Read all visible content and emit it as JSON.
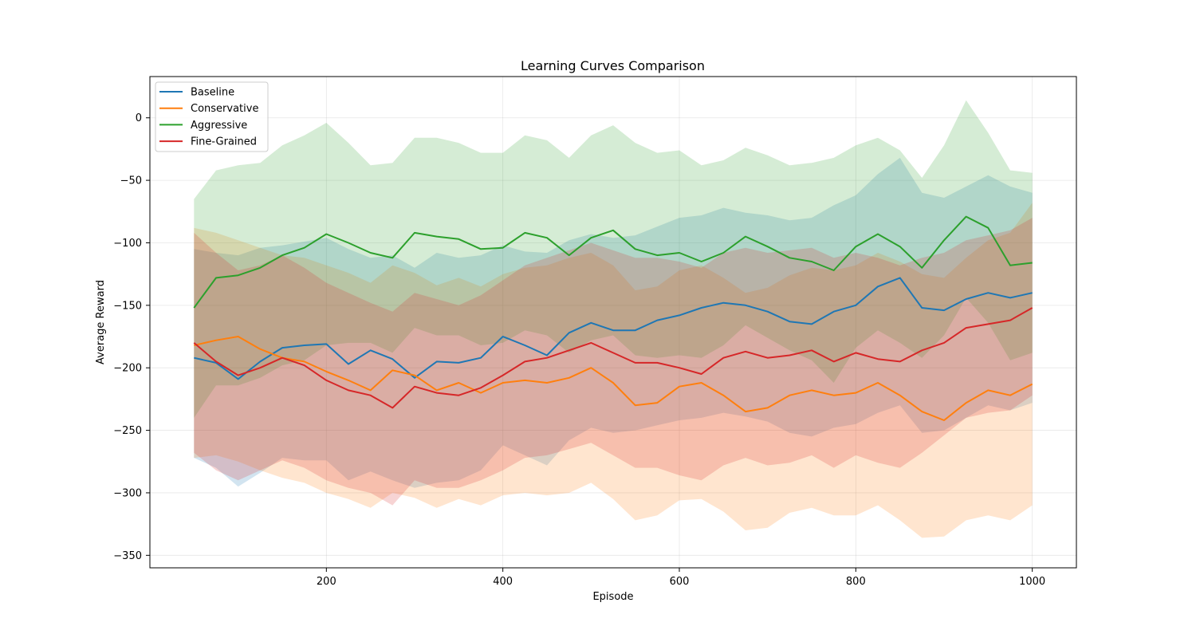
{
  "chart_data": {
    "type": "line",
    "title": "Learning Curves Comparison",
    "xlabel": "Episode",
    "ylabel": "Average Reward",
    "xlim": [
      0,
      1050
    ],
    "ylim": [
      -360,
      33
    ],
    "xticks": [
      200,
      400,
      600,
      800,
      1000
    ],
    "yticks": [
      0,
      -50,
      -100,
      -150,
      -200,
      -250,
      -300,
      -350
    ],
    "grid": true,
    "legend_position": "upper-left",
    "series": [
      {
        "name": "Baseline",
        "color": "#1f77b4",
        "x": [
          50,
          75,
          100,
          125,
          150,
          175,
          200,
          225,
          250,
          275,
          300,
          325,
          350,
          375,
          400,
          425,
          450,
          475,
          500,
          525,
          550,
          575,
          600,
          625,
          650,
          675,
          700,
          725,
          750,
          775,
          800,
          825,
          850,
          875,
          900,
          925,
          950,
          975,
          1000
        ],
        "mean": [
          -192,
          -196,
          -209,
          -195,
          -184,
          -182,
          -181,
          -197,
          -186,
          -193,
          -208,
          -195,
          -196,
          -192,
          -175,
          -182,
          -190,
          -172,
          -164,
          -170,
          -170,
          -162,
          -158,
          -152,
          -148,
          -150,
          -155,
          -163,
          -165,
          -155,
          -150,
          -135,
          -128,
          -152,
          -154,
          -145,
          -140,
          -144,
          -140
        ],
        "upper": [
          -105,
          -108,
          -110,
          -104,
          -102,
          -99,
          -96,
          -105,
          -112,
          -110,
          -120,
          -108,
          -112,
          -110,
          -102,
          -107,
          -108,
          -98,
          -93,
          -96,
          -94,
          -87,
          -80,
          -78,
          -72,
          -76,
          -78,
          -82,
          -80,
          -70,
          -62,
          -45,
          -32,
          -60,
          -64,
          -55,
          -46,
          -55,
          -60
        ],
        "lower": [
          -272,
          -280,
          -295,
          -284,
          -272,
          -274,
          -274,
          -290,
          -283,
          -290,
          -296,
          -292,
          -290,
          -282,
          -262,
          -270,
          -278,
          -258,
          -248,
          -252,
          -250,
          -246,
          -242,
          -240,
          -236,
          -239,
          -243,
          -252,
          -255,
          -248,
          -245,
          -236,
          -230,
          -252,
          -250,
          -240,
          -230,
          -234,
          -228
        ]
      },
      {
        "name": "Conservative",
        "color": "#ff7f0e",
        "x": [
          50,
          75,
          100,
          125,
          150,
          175,
          200,
          225,
          250,
          275,
          300,
          325,
          350,
          375,
          400,
          425,
          450,
          475,
          500,
          525,
          550,
          575,
          600,
          625,
          650,
          675,
          700,
          725,
          750,
          775,
          800,
          825,
          850,
          875,
          900,
          925,
          950,
          975,
          1000
        ],
        "mean": [
          -182,
          -178,
          -175,
          -185,
          -192,
          -195,
          -203,
          -210,
          -218,
          -202,
          -206,
          -218,
          -212,
          -220,
          -212,
          -210,
          -212,
          -208,
          -200,
          -212,
          -230,
          -228,
          -215,
          -212,
          -222,
          -235,
          -232,
          -222,
          -218,
          -222,
          -220,
          -212,
          -222,
          -235,
          -242,
          -228,
          -218,
          -222,
          -213
        ],
        "upper": [
          -88,
          -92,
          -98,
          -104,
          -110,
          -112,
          -118,
          -124,
          -132,
          -118,
          -124,
          -134,
          -128,
          -135,
          -125,
          -120,
          -118,
          -112,
          -108,
          -118,
          -138,
          -135,
          -122,
          -118,
          -128,
          -140,
          -136,
          -126,
          -120,
          -122,
          -118,
          -108,
          -115,
          -125,
          -128,
          -112,
          -98,
          -92,
          -68
        ],
        "lower": [
          -272,
          -270,
          -275,
          -282,
          -288,
          -292,
          -300,
          -305,
          -312,
          -300,
          -304,
          -312,
          -305,
          -310,
          -302,
          -300,
          -302,
          -300,
          -292,
          -305,
          -322,
          -318,
          -306,
          -305,
          -315,
          -330,
          -328,
          -316,
          -312,
          -318,
          -318,
          -310,
          -322,
          -336,
          -335,
          -322,
          -318,
          -322,
          -310
        ]
      },
      {
        "name": "Aggressive",
        "color": "#2ca02c",
        "x": [
          50,
          75,
          100,
          125,
          150,
          175,
          200,
          225,
          250,
          275,
          300,
          325,
          350,
          375,
          400,
          425,
          450,
          475,
          500,
          525,
          550,
          575,
          600,
          625,
          650,
          675,
          700,
          725,
          750,
          775,
          800,
          825,
          850,
          875,
          900,
          925,
          950,
          975,
          1000
        ],
        "mean": [
          -152,
          -128,
          -126,
          -120,
          -110,
          -104,
          -93,
          -100,
          -108,
          -112,
          -92,
          -95,
          -97,
          -105,
          -104,
          -92,
          -96,
          -110,
          -96,
          -90,
          -105,
          -110,
          -108,
          -115,
          -108,
          -95,
          -103,
          -112,
          -115,
          -122,
          -103,
          -93,
          -103,
          -120,
          -98,
          -79,
          -88,
          -118,
          -116
        ],
        "upper": [
          -65,
          -42,
          -38,
          -36,
          -22,
          -14,
          -4,
          -20,
          -38,
          -36,
          -16,
          -16,
          -20,
          -28,
          -28,
          -14,
          -18,
          -32,
          -14,
          -6,
          -20,
          -28,
          -26,
          -38,
          -34,
          -24,
          -30,
          -38,
          -36,
          -32,
          -22,
          -16,
          -26,
          -48,
          -22,
          14,
          -12,
          -42,
          -44
        ],
        "lower": [
          -240,
          -214,
          -214,
          -208,
          -198,
          -194,
          -182,
          -180,
          -180,
          -188,
          -168,
          -174,
          -174,
          -182,
          -180,
          -170,
          -174,
          -188,
          -178,
          -174,
          -190,
          -192,
          -190,
          -192,
          -182,
          -166,
          -176,
          -186,
          -194,
          -212,
          -184,
          -170,
          -180,
          -192,
          -174,
          -144,
          -164,
          -194,
          -188
        ]
      },
      {
        "name": "Fine-Grained",
        "color": "#d62728",
        "x": [
          50,
          75,
          100,
          125,
          150,
          175,
          200,
          225,
          250,
          275,
          300,
          325,
          350,
          375,
          400,
          425,
          450,
          475,
          500,
          525,
          550,
          575,
          600,
          625,
          650,
          675,
          700,
          725,
          750,
          775,
          800,
          825,
          850,
          875,
          900,
          925,
          950,
          975,
          1000
        ],
        "mean": [
          -180,
          -195,
          -206,
          -200,
          -192,
          -198,
          -210,
          -218,
          -222,
          -232,
          -215,
          -220,
          -222,
          -216,
          -206,
          -195,
          -192,
          -186,
          -180,
          -188,
          -196,
          -196,
          -200,
          -205,
          -192,
          -187,
          -192,
          -190,
          -186,
          -195,
          -188,
          -193,
          -195,
          -186,
          -180,
          -168,
          -165,
          -162,
          -152
        ],
        "upper": [
          -92,
          -108,
          -122,
          -118,
          -110,
          -120,
          -132,
          -140,
          -148,
          -155,
          -140,
          -145,
          -150,
          -142,
          -130,
          -118,
          -112,
          -106,
          -100,
          -106,
          -112,
          -112,
          -115,
          -120,
          -108,
          -104,
          -108,
          -106,
          -104,
          -112,
          -108,
          -112,
          -118,
          -112,
          -108,
          -98,
          -94,
          -90,
          -80
        ],
        "lower": [
          -268,
          -282,
          -290,
          -282,
          -274,
          -280,
          -290,
          -296,
          -300,
          -310,
          -290,
          -296,
          -296,
          -290,
          -282,
          -272,
          -270,
          -265,
          -260,
          -270,
          -280,
          -280,
          -286,
          -290,
          -278,
          -272,
          -278,
          -276,
          -270,
          -280,
          -270,
          -276,
          -280,
          -268,
          -254,
          -240,
          -236,
          -234,
          -222
        ]
      }
    ]
  }
}
